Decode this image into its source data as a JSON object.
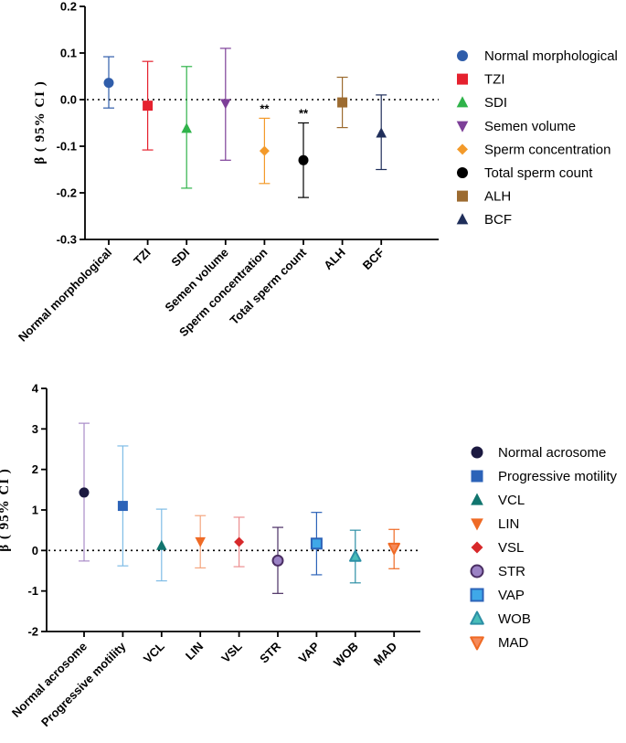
{
  "chart_data": [
    {
      "type": "scatter",
      "title": "",
      "ylabel": "β ( 95% CI )",
      "ylim": [
        -0.3,
        0.2
      ],
      "yticks": [
        0.2,
        0.1,
        0.0,
        -0.1,
        -0.2,
        -0.3
      ],
      "ytick_labels": [
        "0.2",
        "0.1",
        "0.0",
        "-0.1",
        "-0.2",
        "-0.3"
      ],
      "reference_line": 0,
      "legend_position": "right",
      "categories": [
        "Normal morphological",
        "TZI",
        "SDI",
        "Semen volume",
        "Sperm concentration",
        "Total sperm count",
        "ALH",
        "BCF"
      ],
      "series": [
        {
          "name": "Normal morphological",
          "estimate": 0.036,
          "lower": -0.018,
          "upper": 0.092,
          "marker": "circle",
          "color": "#2F5DAA",
          "annotation": ""
        },
        {
          "name": "TZI",
          "estimate": -0.013,
          "lower": -0.108,
          "upper": 0.082,
          "marker": "square",
          "color": "#E5212E",
          "annotation": ""
        },
        {
          "name": "SDI",
          "estimate": -0.062,
          "lower": -0.19,
          "upper": 0.071,
          "marker": "triangle-up",
          "color": "#2FB34A",
          "annotation": ""
        },
        {
          "name": "Semen volume",
          "estimate": -0.008,
          "lower": -0.13,
          "upper": 0.11,
          "marker": "triangle-down",
          "color": "#7D3F98",
          "annotation": ""
        },
        {
          "name": "Sperm concentration",
          "estimate": -0.11,
          "lower": -0.18,
          "upper": -0.04,
          "marker": "diamond",
          "color": "#F39A2A",
          "annotation": "**"
        },
        {
          "name": "Total sperm count",
          "estimate": -0.13,
          "lower": -0.21,
          "upper": -0.05,
          "marker": "circle",
          "color": "#000000",
          "annotation": "**"
        },
        {
          "name": "ALH",
          "estimate": -0.006,
          "lower": -0.06,
          "upper": 0.048,
          "marker": "square",
          "color": "#9C6B30",
          "annotation": ""
        },
        {
          "name": "BCF",
          "estimate": -0.072,
          "lower": -0.15,
          "upper": 0.01,
          "marker": "triangle-up",
          "color": "#1F2E5A",
          "annotation": ""
        }
      ]
    },
    {
      "type": "scatter",
      "title": "",
      "ylabel": "β ( 95% CI )",
      "ylim": [
        -2,
        4
      ],
      "yticks": [
        4,
        3,
        2,
        1,
        0,
        -1,
        -2
      ],
      "ytick_labels": [
        "4",
        "3",
        "2",
        "1",
        "0",
        "-1",
        "-2"
      ],
      "reference_line": 0,
      "legend_position": "right",
      "categories": [
        "Normal acrosome",
        "Progressive motility",
        "VCL",
        "LIN",
        "VSL",
        "STR",
        "VAP",
        "WOB",
        "MAD"
      ],
      "series": [
        {
          "name": "Normal acrosome",
          "estimate": 1.43,
          "lower": -0.26,
          "upper": 3.14,
          "marker": "circle",
          "color": "#1B1940",
          "err_color": "#A98CC8",
          "annotation": ""
        },
        {
          "name": "Progressive motility",
          "estimate": 1.1,
          "lower": -0.38,
          "upper": 2.58,
          "marker": "square",
          "color": "#2C63B8",
          "err_color": "#7FBCE6",
          "annotation": ""
        },
        {
          "name": "VCL",
          "estimate": 0.12,
          "lower": -0.75,
          "upper": 1.02,
          "marker": "triangle-up",
          "color": "#11756E",
          "err_color": "#7FBCE6",
          "annotation": ""
        },
        {
          "name": "LIN",
          "estimate": 0.22,
          "lower": -0.43,
          "upper": 0.86,
          "marker": "triangle-down",
          "color": "#EF6A25",
          "err_color": "#F4A57E",
          "annotation": ""
        },
        {
          "name": "VSL",
          "estimate": 0.21,
          "lower": -0.4,
          "upper": 0.82,
          "marker": "diamond",
          "color": "#D7282A",
          "err_color": "#EC8E90",
          "annotation": ""
        },
        {
          "name": "STR",
          "estimate": -0.25,
          "lower": -1.06,
          "upper": 0.57,
          "marker": "circle-open",
          "color": "#9B82C5",
          "err_color": "#4A2E63",
          "annotation": ""
        },
        {
          "name": "VAP",
          "estimate": 0.17,
          "lower": -0.6,
          "upper": 0.94,
          "marker": "square-open",
          "color": "#3FA8E8",
          "err_color": "#2C63B8",
          "annotation": ""
        },
        {
          "name": "WOB",
          "estimate": -0.15,
          "lower": -0.8,
          "upper": 0.5,
          "marker": "triangle-up-open",
          "color": "#48BDB9",
          "err_color": "#2C8FA5",
          "annotation": ""
        },
        {
          "name": "MAD",
          "estimate": 0.06,
          "lower": -0.45,
          "upper": 0.52,
          "marker": "triangle-down-open",
          "color": "#F58A5A",
          "err_color": "#EF6A25",
          "annotation": ""
        }
      ]
    }
  ]
}
